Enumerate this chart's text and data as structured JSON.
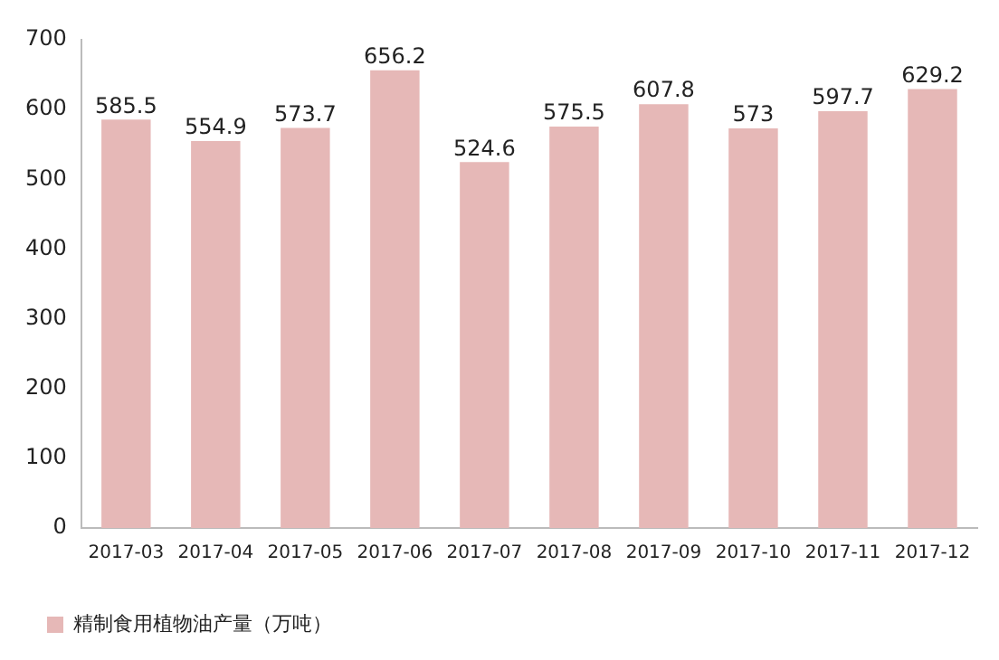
{
  "chart_data": {
    "type": "bar",
    "categories": [
      "2017-03",
      "2017-04",
      "2017-05",
      "2017-06",
      "2017-07",
      "2017-08",
      "2017-09",
      "2017-10",
      "2017-11",
      "2017-12"
    ],
    "series": [
      {
        "name": "精制食用植物油产量（万吨）",
        "color": "#e6b8b7",
        "values": [
          585.5,
          554.9,
          573.7,
          656.2,
          524.6,
          575.5,
          607.8,
          573,
          597.7,
          629.2
        ]
      }
    ],
    "ylim": [
      0,
      700
    ],
    "yticks": [
      0,
      100,
      200,
      300,
      400,
      500,
      600,
      700
    ],
    "grid": false,
    "legend": "bottom left",
    "data_labels": true
  }
}
